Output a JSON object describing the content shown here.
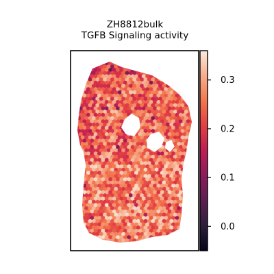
{
  "chart_data": {
    "type": "heatmap",
    "title_line1": "ZH8812bulk",
    "title_line2": "TGFB Signaling activity",
    "xlabel": "",
    "ylabel": "",
    "colorbar": {
      "colormap": "rocket",
      "range": [
        -0.05,
        0.36
      ],
      "ticks": [
        0.0,
        0.1,
        0.2,
        0.3
      ],
      "tick_labels": [
        "0.0",
        "0.1",
        "0.2",
        "0.3"
      ]
    },
    "axes_ticks": "none",
    "grid": false
  }
}
